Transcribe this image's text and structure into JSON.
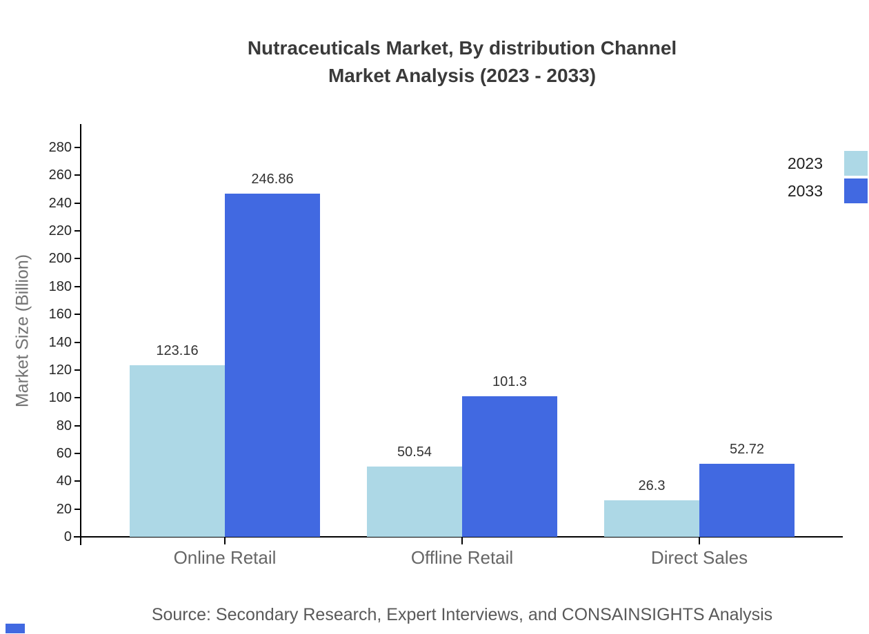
{
  "title": {
    "line1": "Nutraceuticals Market, By distribution Channel",
    "line2": "Market Analysis (2023 - 2033)"
  },
  "y_axis_label": "Market Size (Billion)",
  "source_text": "Source: Secondary Research, Expert Interviews, and CONSAINSIGHTS Analysis",
  "legend": [
    {
      "label": "2023",
      "color": "#ADD8E6"
    },
    {
      "label": "2033",
      "color": "#4169E1"
    }
  ],
  "colors": {
    "series_2023": "#ADD8E6",
    "series_2033": "#4169E1",
    "axis": "#000000",
    "title_text": "#3a3a3a",
    "tick_text": "#262626",
    "category_text": "#666666",
    "source_text": "#595959",
    "brand_mark": "#4169E1"
  },
  "chart_data": {
    "type": "bar",
    "title": "Nutraceuticals Market, By distribution Channel Market Analysis (2023 - 2033)",
    "categories": [
      "Online Retail",
      "Offline Retail",
      "Direct Sales"
    ],
    "series": [
      {
        "name": "2023",
        "color": "#ADD8E6",
        "values": [
          123.16,
          50.54,
          26.3
        ]
      },
      {
        "name": "2033",
        "color": "#4169E1",
        "values": [
          246.86,
          101.3,
          52.72
        ]
      }
    ],
    "xlabel": "",
    "ylabel": "Market Size (Billion)",
    "ylim": [
      0,
      290
    ],
    "yticks": [
      0,
      20,
      40,
      60,
      80,
      100,
      120,
      140,
      160,
      180,
      200,
      220,
      240,
      260,
      280
    ],
    "grid": false,
    "value_labels_shown": true,
    "legend_position": "upper-right-outside"
  }
}
